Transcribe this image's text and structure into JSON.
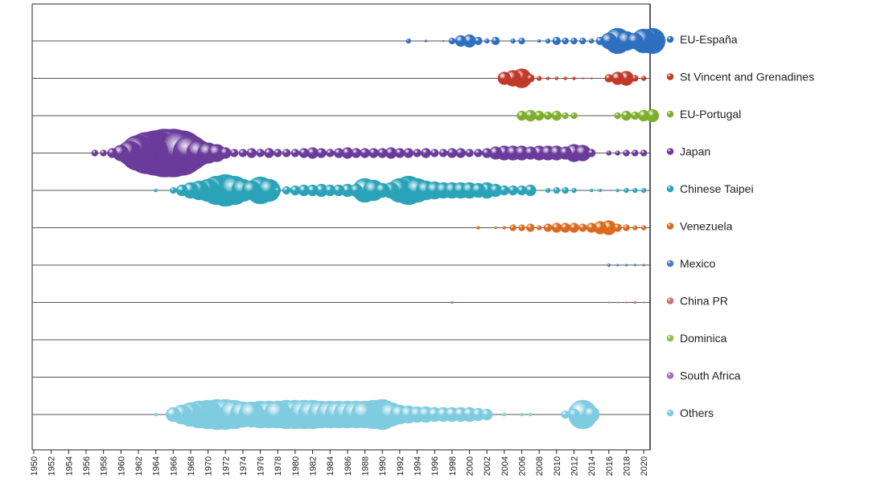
{
  "chart_data": {
    "type": "bubble-timeline",
    "title": "",
    "xlabel": "",
    "ylabel": "",
    "xlim": [
      1950,
      2021
    ],
    "x_ticks": [
      1950,
      1952,
      1954,
      1956,
      1958,
      1960,
      1962,
      1964,
      1966,
      1968,
      1970,
      1972,
      1974,
      1976,
      1978,
      1980,
      1982,
      1984,
      1986,
      1988,
      1990,
      1992,
      1994,
      1996,
      1998,
      2000,
      2002,
      2004,
      2006,
      2008,
      2010,
      2012,
      2014,
      2016,
      2018,
      2020
    ],
    "legend_position": "right",
    "grid": false,
    "note": "",
    "series": [
      {
        "name": "EU-España",
        "color": "#2f6fbf",
        "points": [
          [
            1993,
            3
          ],
          [
            1995,
            1.5
          ],
          [
            1997,
            1
          ],
          [
            1998,
            4
          ],
          [
            1999,
            7
          ],
          [
            2000,
            8
          ],
          [
            2001,
            5
          ],
          [
            2002,
            3
          ],
          [
            2003,
            5
          ],
          [
            2005,
            3
          ],
          [
            2006,
            4
          ],
          [
            2008,
            2
          ],
          [
            2009,
            3
          ],
          [
            2010,
            5
          ],
          [
            2011,
            4
          ],
          [
            2012,
            4
          ],
          [
            2013,
            4
          ],
          [
            2014,
            3
          ],
          [
            2015,
            5
          ],
          [
            2016,
            10
          ],
          [
            2017,
            16
          ],
          [
            2018,
            12
          ],
          [
            2019,
            10
          ],
          [
            2020,
            15
          ],
          [
            2021,
            16
          ]
        ]
      },
      {
        "name": "St Vincent and Grenadines",
        "color": "#c0392b",
        "points": [
          [
            2004,
            8
          ],
          [
            2005,
            10
          ],
          [
            2006,
            12
          ],
          [
            2007,
            5
          ],
          [
            2008,
            3
          ],
          [
            2009,
            2
          ],
          [
            2010,
            2
          ],
          [
            2011,
            2
          ],
          [
            2012,
            2
          ],
          [
            2013,
            1
          ],
          [
            2014,
            1
          ],
          [
            2016,
            5
          ],
          [
            2017,
            8
          ],
          [
            2018,
            9
          ],
          [
            2019,
            4
          ],
          [
            2020,
            3
          ]
        ]
      },
      {
        "name": "EU-Portugal",
        "color": "#7fae2e",
        "points": [
          [
            2006,
            6
          ],
          [
            2007,
            7
          ],
          [
            2008,
            6
          ],
          [
            2009,
            5
          ],
          [
            2010,
            6
          ],
          [
            2011,
            4
          ],
          [
            2012,
            4
          ],
          [
            2017,
            4
          ],
          [
            2018,
            6
          ],
          [
            2019,
            5
          ],
          [
            2020,
            7
          ],
          [
            2021,
            8
          ]
        ]
      },
      {
        "name": "Japan",
        "color": "#6a3b9a",
        "points": [
          [
            1957,
            4
          ],
          [
            1958,
            4
          ],
          [
            1959,
            6
          ],
          [
            1960,
            10
          ],
          [
            1961,
            15
          ],
          [
            1962,
            22
          ],
          [
            1963,
            26
          ],
          [
            1964,
            28
          ],
          [
            1965,
            30
          ],
          [
            1966,
            30
          ],
          [
            1967,
            28
          ],
          [
            1968,
            22
          ],
          [
            1969,
            16
          ],
          [
            1970,
            13
          ],
          [
            1971,
            11
          ],
          [
            1972,
            7
          ],
          [
            1973,
            5
          ],
          [
            1974,
            5
          ],
          [
            1975,
            6
          ],
          [
            1976,
            5
          ],
          [
            1977,
            6
          ],
          [
            1978,
            5
          ],
          [
            1979,
            5
          ],
          [
            1980,
            5
          ],
          [
            1981,
            6
          ],
          [
            1982,
            7
          ],
          [
            1983,
            6
          ],
          [
            1984,
            5
          ],
          [
            1985,
            6
          ],
          [
            1986,
            7
          ],
          [
            1987,
            6
          ],
          [
            1988,
            6
          ],
          [
            1989,
            6
          ],
          [
            1990,
            6
          ],
          [
            1991,
            7
          ],
          [
            1992,
            6
          ],
          [
            1993,
            6
          ],
          [
            1994,
            5
          ],
          [
            1995,
            6
          ],
          [
            1996,
            5
          ],
          [
            1997,
            5
          ],
          [
            1998,
            6
          ],
          [
            1999,
            6
          ],
          [
            2000,
            5
          ],
          [
            2001,
            5
          ],
          [
            2002,
            6
          ],
          [
            2003,
            8
          ],
          [
            2004,
            9
          ],
          [
            2005,
            9
          ],
          [
            2006,
            9
          ],
          [
            2007,
            8
          ],
          [
            2008,
            9
          ],
          [
            2009,
            9
          ],
          [
            2010,
            9
          ],
          [
            2011,
            8
          ],
          [
            2012,
            11
          ],
          [
            2013,
            10
          ],
          [
            2014,
            5
          ],
          [
            2016,
            3
          ],
          [
            2017,
            3
          ],
          [
            2018,
            4
          ],
          [
            2019,
            4
          ],
          [
            2020,
            4
          ]
        ]
      },
      {
        "name": "Chinese Taipei",
        "color": "#2aa3b8",
        "points": [
          [
            1964,
            2
          ],
          [
            1966,
            4
          ],
          [
            1967,
            7
          ],
          [
            1968,
            10
          ],
          [
            1969,
            12
          ],
          [
            1970,
            14
          ],
          [
            1971,
            18
          ],
          [
            1972,
            20
          ],
          [
            1973,
            18
          ],
          [
            1974,
            14
          ],
          [
            1975,
            12
          ],
          [
            1976,
            17
          ],
          [
            1977,
            14
          ],
          [
            1978,
            4
          ],
          [
            1979,
            5
          ],
          [
            1980,
            6
          ],
          [
            1981,
            7
          ],
          [
            1982,
            7
          ],
          [
            1983,
            8
          ],
          [
            1984,
            7
          ],
          [
            1985,
            7
          ],
          [
            1986,
            8
          ],
          [
            1987,
            8
          ],
          [
            1988,
            15
          ],
          [
            1989,
            13
          ],
          [
            1990,
            9
          ],
          [
            1991,
            10
          ],
          [
            1992,
            15
          ],
          [
            1993,
            18
          ],
          [
            1994,
            15
          ],
          [
            1995,
            12
          ],
          [
            1996,
            11
          ],
          [
            1997,
            10
          ],
          [
            1998,
            10
          ],
          [
            1999,
            10
          ],
          [
            2000,
            10
          ],
          [
            2001,
            9
          ],
          [
            2002,
            10
          ],
          [
            2003,
            8
          ],
          [
            2004,
            6
          ],
          [
            2005,
            6
          ],
          [
            2006,
            6
          ],
          [
            2007,
            7
          ],
          [
            2009,
            3
          ],
          [
            2010,
            4
          ],
          [
            2011,
            4
          ],
          [
            2012,
            3
          ],
          [
            2014,
            2
          ],
          [
            2015,
            2
          ],
          [
            2017,
            2
          ],
          [
            2018,
            3
          ],
          [
            2019,
            3
          ],
          [
            2020,
            3
          ]
        ]
      },
      {
        "name": "Venezuela",
        "color": "#d96a1e",
        "points": [
          [
            2001,
            2
          ],
          [
            2003,
            1.5
          ],
          [
            2004,
            2
          ],
          [
            2005,
            4
          ],
          [
            2006,
            4
          ],
          [
            2007,
            5
          ],
          [
            2008,
            3
          ],
          [
            2009,
            5
          ],
          [
            2010,
            6
          ],
          [
            2011,
            6
          ],
          [
            2012,
            6
          ],
          [
            2013,
            5
          ],
          [
            2014,
            6
          ],
          [
            2015,
            8
          ],
          [
            2016,
            9
          ],
          [
            2017,
            5
          ],
          [
            2018,
            4
          ],
          [
            2019,
            3
          ],
          [
            2020,
            3
          ]
        ]
      },
      {
        "name": "Mexico",
        "color": "#4a7cc0",
        "points": [
          [
            2016,
            2
          ],
          [
            2017,
            1.5
          ],
          [
            2018,
            1.5
          ],
          [
            2019,
            1.5
          ],
          [
            2020,
            1.5
          ]
        ]
      },
      {
        "name": "China PR",
        "color": "#c97171",
        "points": [
          [
            1998,
            1.5
          ],
          [
            2016,
            1
          ],
          [
            2017,
            1
          ],
          [
            2018,
            1
          ],
          [
            2019,
            1.5
          ],
          [
            2020,
            1
          ]
        ]
      },
      {
        "name": "Dominica",
        "color": "#8fbf4a",
        "points": []
      },
      {
        "name": "South Africa",
        "color": "#9b6fc2",
        "points": []
      },
      {
        "name": "Others",
        "color": "#7fcbe0",
        "points": [
          [
            1964,
            2
          ],
          [
            1966,
            9
          ],
          [
            1967,
            12
          ],
          [
            1968,
            15
          ],
          [
            1969,
            17
          ],
          [
            1970,
            18
          ],
          [
            1971,
            19
          ],
          [
            1972,
            19
          ],
          [
            1973,
            18
          ],
          [
            1974,
            16
          ],
          [
            1975,
            16
          ],
          [
            1976,
            17
          ],
          [
            1977,
            17
          ],
          [
            1978,
            17
          ],
          [
            1979,
            18
          ],
          [
            1980,
            18
          ],
          [
            1981,
            18
          ],
          [
            1982,
            18
          ],
          [
            1983,
            17
          ],
          [
            1984,
            17
          ],
          [
            1985,
            17
          ],
          [
            1986,
            17
          ],
          [
            1987,
            17
          ],
          [
            1988,
            17
          ],
          [
            1989,
            18
          ],
          [
            1990,
            19
          ],
          [
            1991,
            15
          ],
          [
            1992,
            12
          ],
          [
            1993,
            11
          ],
          [
            1994,
            10
          ],
          [
            1995,
            10
          ],
          [
            1996,
            9
          ],
          [
            1997,
            9
          ],
          [
            1998,
            9
          ],
          [
            1999,
            9
          ],
          [
            2000,
            9
          ],
          [
            2001,
            8
          ],
          [
            2002,
            7
          ],
          [
            2004,
            2
          ],
          [
            2006,
            2
          ],
          [
            2007,
            2
          ],
          [
            2011,
            5
          ],
          [
            2012,
            7
          ],
          [
            2013,
            18
          ],
          [
            2014,
            10
          ]
        ]
      }
    ]
  }
}
